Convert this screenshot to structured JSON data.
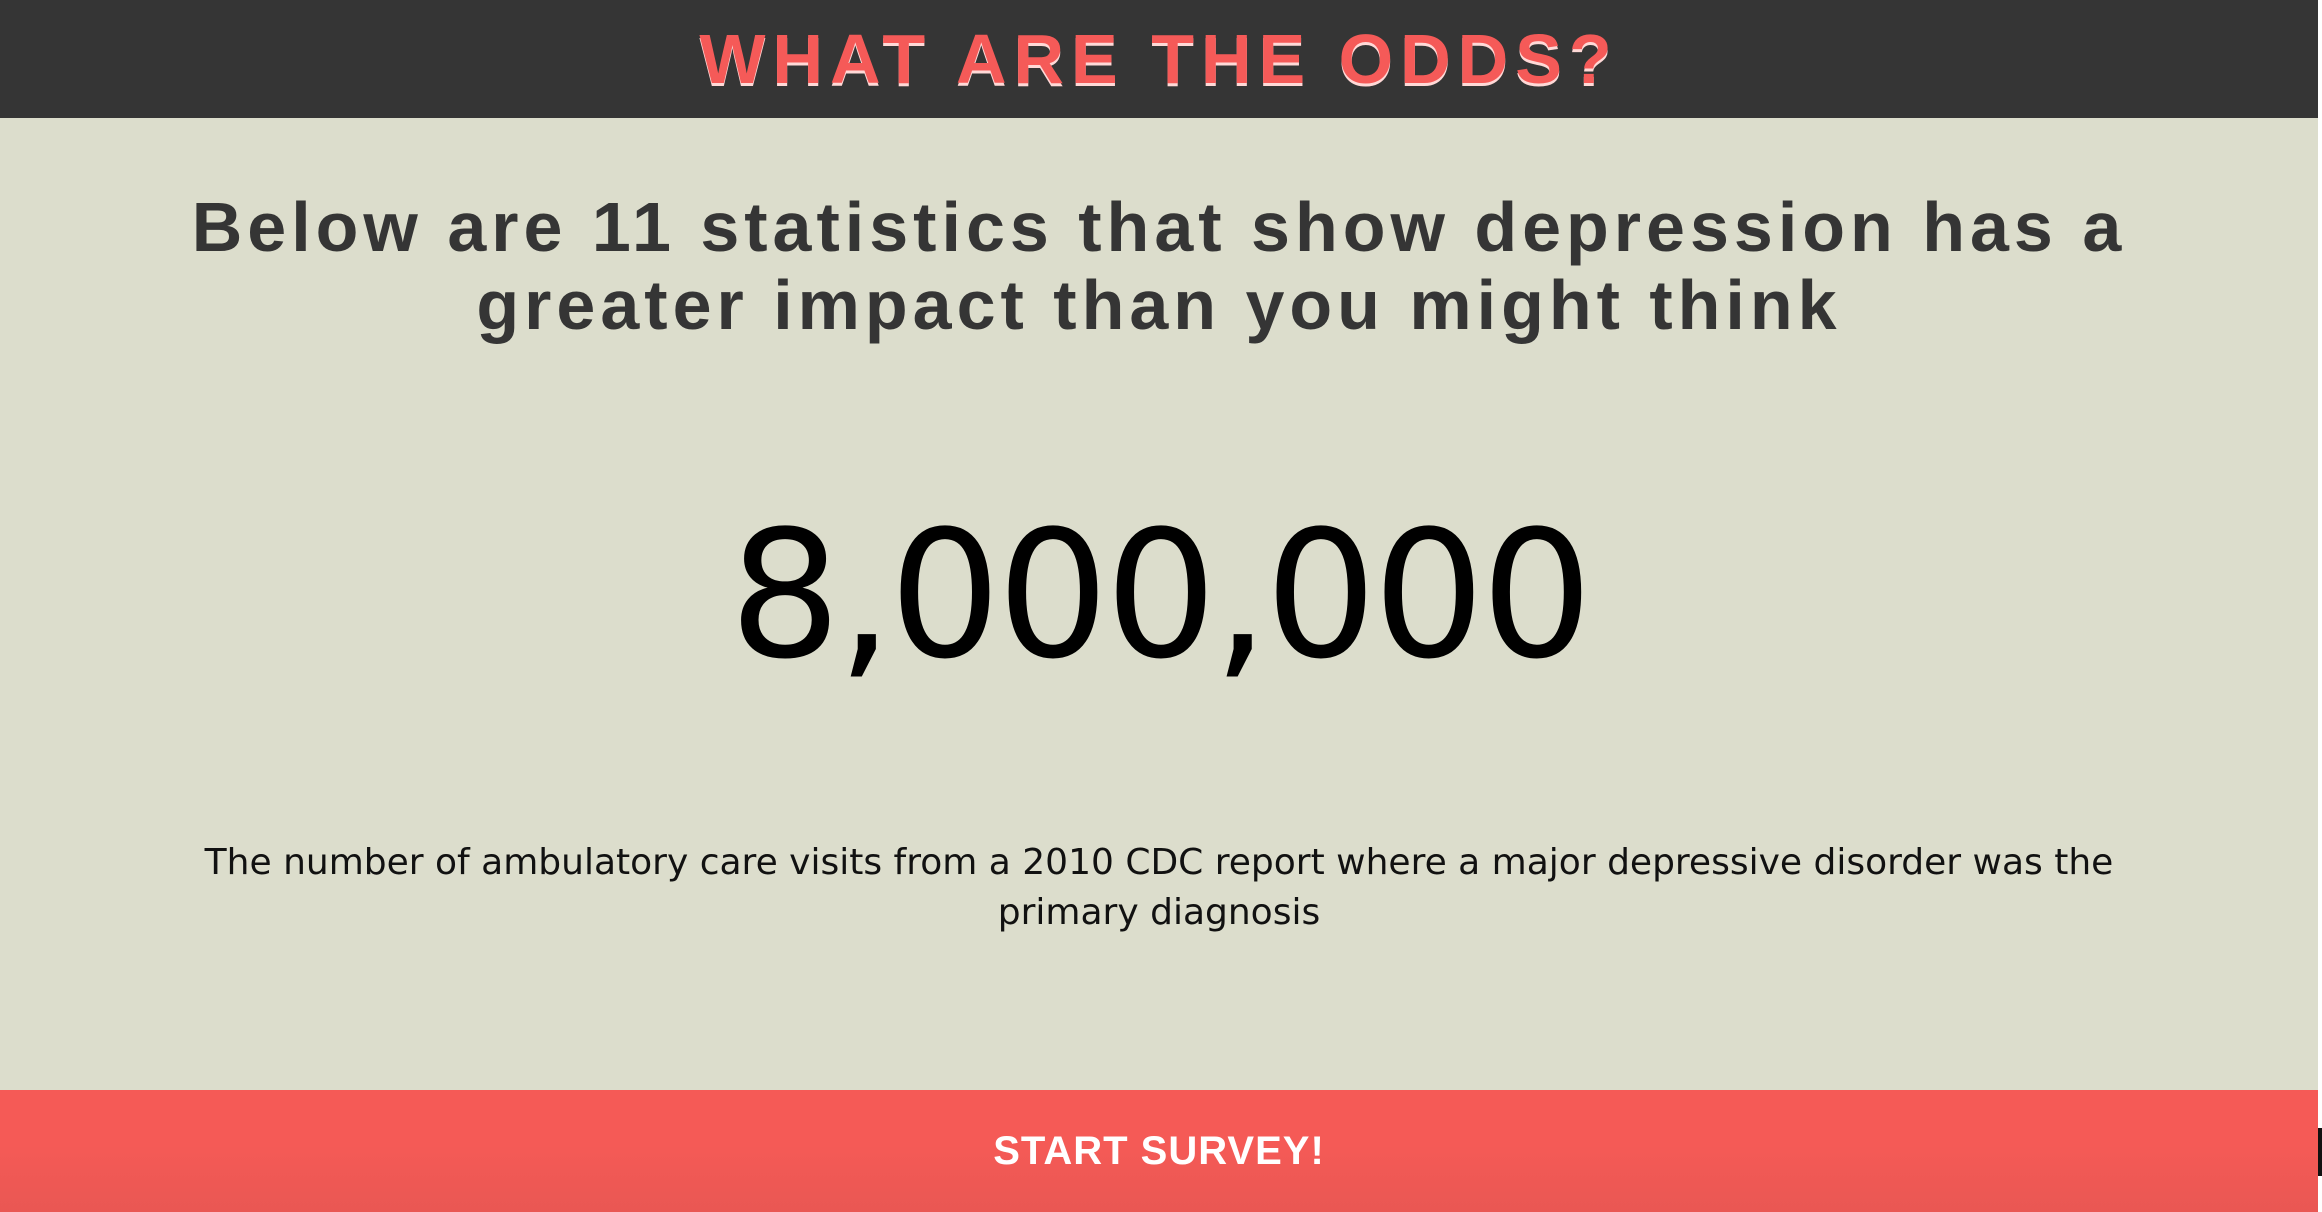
{
  "header": {
    "title": "WHAT ARE THE ODDS?"
  },
  "main": {
    "intro": "Below are 11 statistics that show depression has a greater impact than you might think",
    "statistic": {
      "value": "8,000,000",
      "caption": "The number of ambulatory care visits from a 2010 CDC report where a major depressive disorder was the primary diagnosis"
    }
  },
  "footer": {
    "button_label": "START SURVEY!"
  },
  "colors": {
    "header_background": "#353535",
    "title_red": "#f55a58",
    "page_background": "#dcddcc",
    "button_background": "#f55a56",
    "button_text": "#ffffff"
  }
}
